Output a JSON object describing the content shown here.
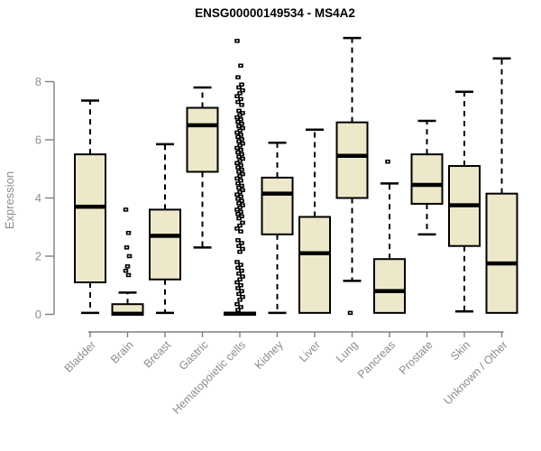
{
  "chart_data": {
    "type": "boxplot",
    "title": "ENSG00000149534 - MS4A2",
    "ylabel": "Expression",
    "xlabel": "",
    "yticks": [
      0,
      2,
      4,
      6,
      8
    ],
    "ylim": [
      0,
      9.6
    ],
    "grid": false,
    "legend": "none",
    "categories": [
      "Bladder",
      "Brain",
      "Breast",
      "Gastric",
      "Hematopoietic cells",
      "Kidney",
      "Liver",
      "Lung",
      "Pancreas",
      "Prostate",
      "Skin",
      "Unknown / Other"
    ],
    "series": [
      {
        "category": "Bladder",
        "whisker_low": 0.05,
        "q1": 1.1,
        "median": 3.7,
        "q3": 5.5,
        "whisker_high": 7.35,
        "outliers": []
      },
      {
        "category": "Brain",
        "whisker_low": 0.0,
        "q1": 0.0,
        "median": 0.02,
        "q3": 0.35,
        "whisker_high": 0.75,
        "outliers": [
          3.6,
          2.8,
          2.3,
          2.0,
          1.65,
          1.5,
          1.35
        ]
      },
      {
        "category": "Breast",
        "whisker_low": 0.05,
        "q1": 1.2,
        "median": 2.7,
        "q3": 3.6,
        "whisker_high": 5.85,
        "outliers": []
      },
      {
        "category": "Gastric",
        "whisker_low": 2.3,
        "q1": 4.9,
        "median": 6.5,
        "q3": 7.1,
        "whisker_high": 7.8,
        "outliers": []
      },
      {
        "category": "Hematopoietic cells",
        "whisker_low": 0.0,
        "q1": 0.0,
        "median": 0.02,
        "q3": 0.06,
        "whisker_high": 0.1,
        "outliers": [
          9.4,
          8.55,
          8.15,
          7.9,
          7.8,
          7.7,
          7.6,
          7.5,
          7.4,
          7.3,
          7.2,
          7.0,
          6.92,
          6.85,
          6.77,
          6.7,
          6.62,
          6.55,
          6.47,
          6.4,
          6.32,
          6.25,
          6.17,
          6.1,
          6.02,
          5.95,
          5.87,
          5.8,
          5.72,
          5.65,
          5.57,
          5.5,
          5.42,
          5.35,
          5.27,
          5.2,
          5.12,
          5.05,
          4.97,
          4.9,
          4.82,
          4.75,
          4.67,
          4.6,
          4.5,
          4.42,
          4.35,
          4.27,
          4.2,
          4.12,
          4.05,
          3.97,
          3.9,
          3.82,
          3.75,
          3.67,
          3.6,
          3.52,
          3.45,
          3.37,
          3.3,
          3.15,
          3.05,
          2.95,
          2.85,
          2.55,
          2.45,
          2.35,
          2.25,
          2.15,
          1.8,
          1.7,
          1.6,
          1.5,
          1.4,
          1.3,
          1.2,
          1.1,
          1.0,
          0.9,
          0.8,
          0.7,
          0.6,
          0.5,
          0.35,
          0.25,
          0.15
        ]
      },
      {
        "category": "Kidney",
        "whisker_low": 0.05,
        "q1": 2.75,
        "median": 4.15,
        "q3": 4.7,
        "whisker_high": 5.9,
        "outliers": []
      },
      {
        "category": "Liver",
        "whisker_low": 0.05,
        "q1": 0.05,
        "median": 2.1,
        "q3": 3.35,
        "whisker_high": 6.35,
        "outliers": []
      },
      {
        "category": "Lung",
        "whisker_low": 1.15,
        "q1": 4.0,
        "median": 5.45,
        "q3": 6.6,
        "whisker_high": 9.5,
        "outliers": [
          0.05
        ]
      },
      {
        "category": "Pancreas",
        "whisker_low": 0.05,
        "q1": 0.05,
        "median": 0.8,
        "q3": 1.9,
        "whisker_high": 4.5,
        "outliers": [
          5.25
        ]
      },
      {
        "category": "Prostate",
        "whisker_low": 2.75,
        "q1": 3.8,
        "median": 4.45,
        "q3": 5.5,
        "whisker_high": 6.65,
        "outliers": []
      },
      {
        "category": "Skin",
        "whisker_low": 0.1,
        "q1": 2.35,
        "median": 3.75,
        "q3": 5.1,
        "whisker_high": 7.65,
        "outliers": []
      },
      {
        "category": "Unknown / Other",
        "whisker_low": 0.05,
        "q1": 0.05,
        "median": 1.75,
        "q3": 4.15,
        "whisker_high": 8.8,
        "outliers": []
      }
    ],
    "colors": {
      "box_fill": "#EDE8C9",
      "box_border": "#000000",
      "median": "#000000",
      "whisker": "#000000",
      "outlier": "#000000",
      "axis": "#7f7f7f",
      "tick_label": "#8c8c8c",
      "title": "#000000",
      "background": "#ffffff"
    }
  }
}
